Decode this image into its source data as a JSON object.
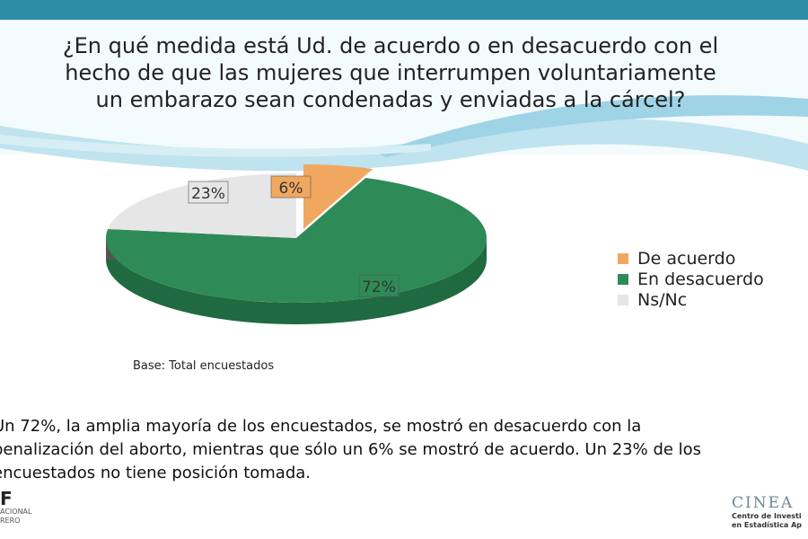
{
  "title_lines": [
    "¿En qué medida está Ud. de acuerdo o en desacuerdo con el",
    "hecho de que las mujeres que interrumpen voluntariamente",
    "un embarazo sean condenadas y enviadas a la cárcel?"
  ],
  "chart_data": {
    "type": "pie",
    "title": "¿En qué medida está Ud. de acuerdo o en desacuerdo con el hecho de que las mujeres que interrumpen voluntariamente un embarazo sean condenadas y enviadas a la cárcel?",
    "categories": [
      "De acuerdo",
      "En desacuerdo",
      "Ns/Nc"
    ],
    "values": [
      6,
      72,
      23
    ],
    "labels": [
      "6%",
      "72%",
      "23%"
    ],
    "colors": [
      "#f0a860",
      "#2e8b57",
      "#e6e6e6"
    ],
    "side_colors": [
      "#c07a30",
      "#1f6a40",
      "#555555"
    ],
    "legend_position": "right"
  },
  "base_note": "Base: Total encuestados",
  "summary_lines": [
    "Un 72%, la amplia mayoría de los encuestados, se mostró en desacuerdo con la",
    "penalización del aborto, mientras que sólo un 6% se mostró de acuerdo. Un 23% de los",
    "encuestados no tiene posición tomada."
  ],
  "logo_left": {
    "mark": "F",
    "line1": "ACIONAL",
    "line2": "RERO"
  },
  "logo_right": {
    "name": "CINEA",
    "line1": "Centro de Investi",
    "line2": "en Estadística Ap"
  }
}
